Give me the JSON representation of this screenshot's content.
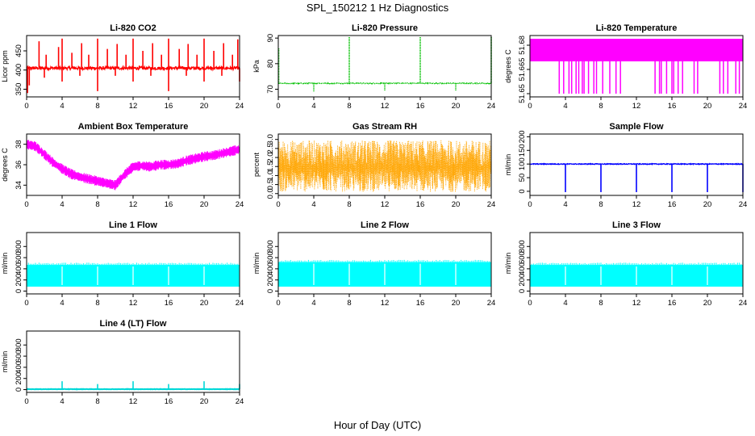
{
  "figure": {
    "title": "SPL_150212  1 Hz Diagnostics",
    "xlabel": "Hour of Day (UTC)"
  },
  "chart_data": [
    {
      "type": "line",
      "title": "Li-820 CO2",
      "ylabel": "Licor ppm",
      "xlim": [
        0,
        24
      ],
      "ylim": [
        330,
        490
      ],
      "xticks": [
        0,
        4,
        8,
        12,
        16,
        20,
        24
      ],
      "yticks": [
        350,
        400,
        450
      ],
      "color": "#ff0000",
      "baseline": 405,
      "noise": 4,
      "drift": 0,
      "spikes_up": [
        [
          1.4,
          475
        ],
        [
          2.2,
          440
        ],
        [
          3.6,
          460
        ],
        [
          4.0,
          482
        ],
        [
          5.1,
          445
        ],
        [
          6.2,
          470
        ],
        [
          7.0,
          440
        ],
        [
          8.0,
          482
        ],
        [
          9.1,
          455
        ],
        [
          10.2,
          468
        ],
        [
          11.2,
          440
        ],
        [
          12.0,
          482
        ],
        [
          13.1,
          450
        ],
        [
          14.2,
          470
        ],
        [
          15.2,
          440
        ],
        [
          16.0,
          482
        ],
        [
          17.2,
          455
        ],
        [
          18.2,
          468
        ],
        [
          19.2,
          440
        ],
        [
          20.0,
          482
        ],
        [
          21.1,
          450
        ],
        [
          22.2,
          470
        ],
        [
          23.2,
          440
        ],
        [
          23.8,
          480
        ]
      ],
      "spikes_down": [
        [
          0.1,
          340
        ],
        [
          0.3,
          360
        ],
        [
          2.0,
          380
        ],
        [
          4.0,
          370
        ],
        [
          6.0,
          385
        ],
        [
          8.0,
          345
        ],
        [
          10.0,
          385
        ],
        [
          12.0,
          370
        ],
        [
          14.0,
          385
        ],
        [
          16.0,
          345
        ],
        [
          18.0,
          385
        ],
        [
          20.0,
          370
        ],
        [
          22.0,
          385
        ],
        [
          24.0,
          370
        ]
      ]
    },
    {
      "type": "line",
      "title": "Li-820 Pressure",
      "ylabel": "kPa",
      "xlim": [
        0,
        24
      ],
      "ylim": [
        67,
        91
      ],
      "xticks": [
        0,
        4,
        8,
        12,
        16,
        20,
        24
      ],
      "yticks": [
        70,
        80,
        90
      ],
      "color": "#00c000",
      "dotted": true,
      "baseline": 72.3,
      "noise": 0.15,
      "drift": 0,
      "spikes_up": [
        [
          0.05,
          86
        ],
        [
          8.0,
          90.5
        ],
        [
          16.0,
          90.5
        ],
        [
          24.0,
          90.5
        ]
      ],
      "spikes_down": [
        [
          4.0,
          69
        ],
        [
          12.0,
          69.5
        ],
        [
          20.0,
          69.5
        ]
      ]
    },
    {
      "type": "band",
      "title": "Li-820 Temperature",
      "ylabel": "degrees C",
      "xlim": [
        0,
        24
      ],
      "ylim": [
        51.648,
        51.686
      ],
      "xticks": [
        0,
        4,
        8,
        12,
        16,
        20,
        24
      ],
      "yticks": [
        51.65,
        51.665,
        51.68
      ],
      "ytick_labels": [
        "51.65",
        "51.665",
        "51.68"
      ],
      "color": "#ff00ff",
      "top": 51.684,
      "bottom": 51.67,
      "deep_bottom": 51.65,
      "gaps": [
        3.3,
        3.8,
        4.4,
        4.7,
        5.2,
        5.5,
        5.9,
        6.1,
        6.6,
        7.2,
        7.5,
        8.2,
        9.0,
        9.7,
        10.2,
        14.1,
        14.6,
        14.8,
        15.4,
        16.0,
        16.2,
        16.7,
        17.2,
        18.5,
        18.9,
        21.4,
        21.8,
        22.3,
        23.2,
        23.6
      ]
    },
    {
      "type": "band",
      "title": "Ambient Box Temperature",
      "ylabel": "degrees C",
      "xlim": [
        0,
        24
      ],
      "ylim": [
        33,
        39
      ],
      "xticks": [
        0,
        4,
        8,
        12,
        16,
        20,
        24
      ],
      "yticks": [
        34,
        36,
        38
      ],
      "color": "#ff00ff",
      "profile": [
        [
          0,
          38.0
        ],
        [
          1,
          37.8
        ],
        [
          2,
          37.0
        ],
        [
          3,
          36.2
        ],
        [
          4,
          35.6
        ],
        [
          5,
          35.1
        ],
        [
          6,
          34.8
        ],
        [
          7,
          34.6
        ],
        [
          8,
          34.4
        ],
        [
          9,
          34.2
        ],
        [
          10,
          34.0
        ],
        [
          11,
          35.0
        ],
        [
          12,
          35.8
        ],
        [
          13,
          35.9
        ],
        [
          14,
          35.8
        ],
        [
          15,
          36.0
        ],
        [
          16,
          36.0
        ],
        [
          17,
          36.1
        ],
        [
          18,
          36.4
        ],
        [
          19,
          36.6
        ],
        [
          20,
          36.8
        ],
        [
          21,
          36.9
        ],
        [
          22,
          37.1
        ],
        [
          23,
          37.3
        ],
        [
          24,
          37.5
        ]
      ],
      "halfwidth": 0.35
    },
    {
      "type": "band",
      "title": "Gas Stream RH",
      "ylabel": "percent",
      "xlim": [
        0,
        24
      ],
      "ylim": [
        -0.1,
        3.3
      ],
      "xticks": [
        0,
        4,
        8,
        12,
        16,
        20,
        24
      ],
      "yticks": [
        0,
        0.5,
        1,
        1.5,
        2,
        2.5,
        3
      ],
      "ytick_labels": [
        "0.0",
        "0.5",
        "1.0",
        "1.5",
        "2.0",
        "2.5",
        "3.0"
      ],
      "color": "#ffa500",
      "mean": 1.5,
      "hi": 2.95,
      "lo": 0.1
    },
    {
      "type": "line",
      "title": "Sample Flow",
      "ylabel": "ml/min",
      "xlim": [
        0,
        24
      ],
      "ylim": [
        -15,
        210
      ],
      "xticks": [
        0,
        4,
        8,
        12,
        16,
        20,
        24
      ],
      "yticks": [
        0,
        50,
        100,
        150,
        200
      ],
      "color": "#0000ff",
      "baseline": 100,
      "noise": 1.5,
      "drift": 0,
      "spikes_up": [],
      "spikes_down": [
        [
          4.0,
          -3
        ],
        [
          8.0,
          -3
        ],
        [
          12.0,
          -3
        ],
        [
          16.0,
          -3
        ],
        [
          20.0,
          -3
        ],
        [
          24.0,
          -3
        ]
      ]
    },
    {
      "type": "band",
      "title": "Line 1 Flow",
      "ylabel": "ml/min",
      "xlim": [
        0,
        24
      ],
      "ylim": [
        -50,
        1050
      ],
      "xticks": [
        0,
        4,
        8,
        12,
        16,
        20,
        24
      ],
      "yticks": [
        0,
        200,
        400,
        600,
        800
      ],
      "color": "#00ffff",
      "top": 470,
      "bottom": 80,
      "notches": [
        4.0,
        8.0,
        12.0,
        16.0,
        20.0,
        24.0
      ]
    },
    {
      "type": "band",
      "title": "Line 2 Flow",
      "ylabel": "ml/min",
      "xlim": [
        0,
        24
      ],
      "ylim": [
        -50,
        1050
      ],
      "xticks": [
        0,
        4,
        8,
        12,
        16,
        20,
        24
      ],
      "yticks": [
        0,
        200,
        400,
        600,
        800
      ],
      "color": "#00ffff",
      "top": 520,
      "bottom": 80,
      "notches": [
        4.0,
        8.0,
        12.0,
        16.0,
        20.0,
        24.0
      ]
    },
    {
      "type": "band",
      "title": "Line 3 Flow",
      "ylabel": "ml/min",
      "xlim": [
        0,
        24
      ],
      "ylim": [
        -50,
        1050
      ],
      "xticks": [
        0,
        4,
        8,
        12,
        16,
        20,
        24
      ],
      "yticks": [
        0,
        200,
        400,
        600,
        800
      ],
      "color": "#00ffff",
      "top": 470,
      "bottom": 80,
      "notches": [
        4.0,
        8.0,
        12.0,
        16.0,
        20.0,
        24.0
      ]
    },
    {
      "type": "line",
      "title": "Line 4 (LT) Flow",
      "ylabel": "ml/min",
      "xlim": [
        0,
        24
      ],
      "ylim": [
        -50,
        1050
      ],
      "xticks": [
        0,
        4,
        8,
        12,
        16,
        20,
        24
      ],
      "yticks": [
        0,
        200,
        400,
        600,
        800
      ],
      "color": "#00d8d8",
      "baseline": 8,
      "noise": 3,
      "drift": 0,
      "thick": true,
      "spikes_up": [
        [
          4.0,
          150
        ],
        [
          8.0,
          100
        ],
        [
          12.0,
          150
        ],
        [
          16.0,
          100
        ],
        [
          20.0,
          150
        ],
        [
          24.0,
          100
        ]
      ],
      "spikes_down": []
    }
  ]
}
